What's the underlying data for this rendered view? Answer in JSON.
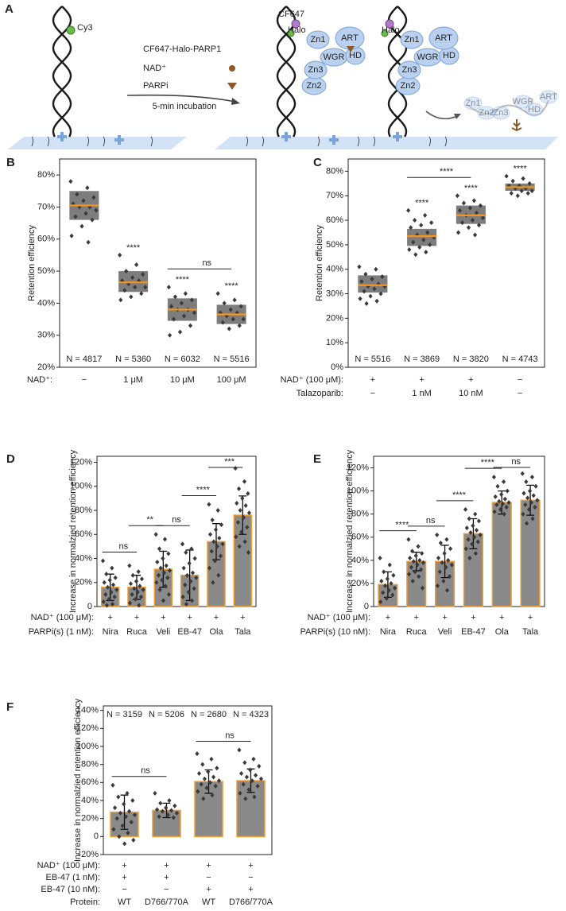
{
  "panel_a": {
    "label": "A",
    "dye1": "Cy3",
    "legend": [
      "CF647-Halo-PARP1",
      "NAD⁺",
      "PARPi"
    ],
    "step": "5-min incubation",
    "dye2": "CF647",
    "tag": "Halo",
    "domains": [
      "Zn1",
      "Zn2",
      "Zn3",
      "WGR",
      "HD",
      "ART"
    ]
  },
  "chart_data": [
    {
      "type": "box",
      "label": "B",
      "y_label": "Retention efficiency",
      "ylim": [
        20,
        85
      ],
      "yticks": [
        {
          "value": 20,
          "label": "20%"
        },
        {
          "value": 30,
          "label": "30%"
        },
        {
          "value": 40,
          "label": "40%"
        },
        {
          "value": 50,
          "label": "50%"
        },
        {
          "value": 60,
          "label": "60%"
        },
        {
          "value": 70,
          "label": "70%"
        },
        {
          "value": 80,
          "label": "80%"
        }
      ],
      "condition_rows": [
        {
          "label": "NAD⁺:",
          "values": [
            "−",
            "1 μM",
            "10 μM",
            "100 μM"
          ]
        }
      ],
      "n_labels": [
        "N = 4817",
        "N = 5360",
        "N = 6032",
        "N = 5516"
      ],
      "n_labels_position": "bottom",
      "box_color": "#7d7d7d",
      "median_color": "#f7941d",
      "point_color": "#3a3a3a",
      "boxes": [
        {
          "q1": 66,
          "median": 70.5,
          "q3": 75
        },
        {
          "q1": 43.5,
          "median": 46.5,
          "q3": 50
        },
        {
          "q1": 34.5,
          "median": 38,
          "q3": 41.5
        },
        {
          "q1": 33.5,
          "median": 36.5,
          "q3": 39.5
        }
      ],
      "points": [
        [
          78,
          76,
          74,
          73,
          72,
          71,
          70,
          70,
          69,
          68,
          67,
          66,
          64,
          61,
          59
        ],
        [
          55,
          52,
          50,
          49,
          48,
          47,
          47,
          46,
          45,
          45,
          44,
          43,
          42,
          41
        ],
        [
          45,
          43,
          42,
          41,
          40,
          39,
          38,
          38,
          37,
          36,
          35,
          33,
          31,
          30
        ],
        [
          43,
          41,
          40,
          39,
          38,
          37,
          37,
          36,
          35,
          35,
          34,
          33,
          32
        ]
      ],
      "sig_labels": [
        null,
        "****",
        "****",
        "****"
      ],
      "pair_labels": [
        null,
        null,
        "ns"
      ]
    },
    {
      "type": "box",
      "label": "C",
      "y_label": "Retention efficiency",
      "ylim": [
        0,
        85
      ],
      "yticks": [
        {
          "value": 0,
          "label": "0%"
        },
        {
          "value": 10,
          "label": "10%"
        },
        {
          "value": 20,
          "label": "20%"
        },
        {
          "value": 30,
          "label": "30%"
        },
        {
          "value": 40,
          "label": "40%"
        },
        {
          "value": 50,
          "label": "50%"
        },
        {
          "value": 60,
          "label": "60%"
        },
        {
          "value": 70,
          "label": "70%"
        },
        {
          "value": 80,
          "label": "80%"
        }
      ],
      "condition_rows": [
        {
          "label": "NAD⁺ (100 μM):",
          "values": [
            "+",
            "+",
            "+",
            "−"
          ]
        },
        {
          "label": "Talazoparib:",
          "values": [
            "−",
            "1 nM",
            "10 nM",
            "−"
          ]
        }
      ],
      "n_labels": [
        "N = 5516",
        "N = 3869",
        "N = 3820",
        "N = 4743"
      ],
      "n_labels_position": "bottom",
      "box_color": "#7d7d7d",
      "median_color": "#f7941d",
      "point_color": "#3a3a3a",
      "boxes": [
        {
          "q1": 30.5,
          "median": 33.5,
          "q3": 37.5
        },
        {
          "q1": 49.5,
          "median": 53.5,
          "q3": 56.5
        },
        {
          "q1": 58.5,
          "median": 62,
          "q3": 66
        },
        {
          "q1": 72,
          "median": 73.5,
          "q3": 75
        }
      ],
      "points": [
        [
          41,
          40,
          38,
          37,
          36,
          35,
          34,
          33,
          33,
          32,
          31,
          30,
          29,
          28,
          27,
          26
        ],
        [
          64,
          62,
          60,
          59,
          58,
          57,
          55,
          54,
          53,
          52,
          51,
          50,
          49,
          48,
          47,
          46
        ],
        [
          70,
          68,
          67,
          66,
          65,
          64,
          63,
          62,
          61,
          60,
          59,
          58,
          57,
          55,
          54
        ],
        [
          78,
          77,
          76,
          75,
          74,
          74,
          73,
          73,
          72,
          72,
          71,
          71,
          70
        ]
      ],
      "sig_labels": [
        null,
        "****",
        "****",
        "****"
      ],
      "pair_labels": [
        null,
        "****",
        null
      ]
    },
    {
      "type": "bar",
      "label": "D",
      "y_label": "Increase in normalzied retention efficiency",
      "ylim": [
        0,
        125
      ],
      "yticks": [
        0,
        {
          "value": 20,
          "label": "20%"
        },
        {
          "value": 40,
          "label": "40%"
        },
        {
          "value": 60,
          "label": "60%"
        },
        {
          "value": 80,
          "label": "80%"
        },
        {
          "value": 100,
          "label": "100%"
        },
        {
          "value": 120,
          "label": "120%"
        }
      ],
      "condition_rows": [
        {
          "label": "NAD⁺ (100 μM):",
          "values": [
            "+",
            "+",
            "+",
            "+",
            "+",
            "+"
          ]
        },
        {
          "label": "PARPi(s) (1 nM):",
          "values": [
            "Nira",
            "Ruca",
            "Veli",
            "EB-47",
            "Ola",
            "Tala"
          ]
        }
      ],
      "bar_color": "#8a8a8a",
      "edge_color": "#f39a2a",
      "point_color": "#3a3a3a",
      "values": [
        16,
        16,
        31,
        26,
        54,
        76
      ],
      "errors": [
        11,
        10,
        15,
        21,
        15,
        16
      ],
      "points": [
        [
          38,
          32,
          27,
          24,
          22,
          20,
          18,
          16,
          14,
          12,
          10,
          8,
          6,
          4,
          2,
          1
        ],
        [
          34,
          29,
          26,
          23,
          21,
          19,
          17,
          15,
          14,
          12,
          10,
          8,
          6,
          3,
          1
        ],
        [
          60,
          56,
          48,
          44,
          40,
          37,
          34,
          32,
          30,
          28,
          26,
          24,
          22,
          20,
          17,
          14,
          10,
          5
        ],
        [
          52,
          48,
          45,
          40,
          36,
          32,
          28,
          26,
          24,
          21,
          18,
          15,
          12,
          8,
          5,
          2
        ],
        [
          85,
          80,
          72,
          68,
          64,
          60,
          57,
          54,
          52,
          50,
          46,
          42,
          38,
          32,
          26,
          20
        ],
        [
          115,
          104,
          98,
          94,
          90,
          86,
          84,
          80,
          78,
          74,
          70,
          66,
          62,
          58,
          54,
          50,
          45
        ]
      ],
      "pair_labels": [
        "ns",
        "**",
        "ns",
        "****",
        "***"
      ]
    },
    {
      "type": "bar",
      "label": "E",
      "y_label": "Increase in normalzied retention efficiency",
      "ylim": [
        0,
        130
      ],
      "yticks": [
        0,
        {
          "value": 20,
          "label": "20%"
        },
        {
          "value": 40,
          "label": "40%"
        },
        {
          "value": 60,
          "label": "60%"
        },
        {
          "value": 80,
          "label": "80%"
        },
        {
          "value": 100,
          "label": "100%"
        },
        {
          "value": 120,
          "label": "120%"
        }
      ],
      "condition_rows": [
        {
          "label": "NAD⁺ (100 μM):",
          "values": [
            "+",
            "+",
            "+",
            "+",
            "+",
            "+"
          ]
        },
        {
          "label": "PARPi(s) (10 nM):",
          "values": [
            "Nira",
            "Ruca",
            "Veli",
            "EB-47",
            "Ola",
            "Tala"
          ]
        }
      ],
      "bar_color": "#8a8a8a",
      "edge_color": "#f39a2a",
      "point_color": "#3a3a3a",
      "values": [
        19,
        39,
        39,
        63,
        90,
        92
      ],
      "errors": [
        11,
        8,
        14,
        13,
        10,
        13
      ],
      "points": [
        [
          42,
          36,
          30,
          27,
          24,
          22,
          20,
          18,
          16,
          14,
          12,
          10,
          7,
          4
        ],
        [
          58,
          52,
          48,
          46,
          44,
          42,
          40,
          39,
          38,
          36,
          34,
          32,
          30,
          28,
          26,
          22,
          16
        ],
        [
          62,
          58,
          55,
          50,
          46,
          42,
          40,
          38,
          36,
          34,
          30,
          26,
          22,
          18,
          14
        ],
        [
          84,
          80,
          76,
          74,
          70,
          68,
          66,
          64,
          62,
          60,
          58,
          56,
          54,
          50,
          46,
          42
        ],
        [
          112,
          108,
          104,
          100,
          97,
          95,
          93,
          91,
          90,
          89,
          88,
          86,
          84,
          82,
          80
        ],
        [
          115,
          112,
          108,
          104,
          100,
          98,
          96,
          94,
          92,
          90,
          88,
          86,
          84,
          80,
          76,
          72
        ]
      ],
      "pair_labels": [
        "****",
        "ns",
        "****",
        "****",
        "ns"
      ]
    },
    {
      "type": "bar",
      "label": "F",
      "y_label": "Increase in normalzied retention efficiency",
      "ylim": [
        -20,
        145
      ],
      "yticks": [
        {
          "value": -20,
          "label": "-20%"
        },
        0,
        {
          "value": 20,
          "label": "20%"
        },
        {
          "value": 40,
          "label": "40%"
        },
        {
          "value": 60,
          "label": "60%"
        },
        {
          "value": 80,
          "label": "80%"
        },
        {
          "value": 100,
          "label": "100%"
        },
        {
          "value": 120,
          "label": "120%"
        },
        {
          "value": 140,
          "label": "140%"
        }
      ],
      "condition_rows": [
        {
          "label": "NAD⁺ (100 μM):",
          "values": [
            "+",
            "+",
            "+",
            "+"
          ]
        },
        {
          "label": "EB-47 (1 nM):",
          "values": [
            "+",
            "+",
            "−",
            "−"
          ]
        },
        {
          "label": "EB-47 (10 nM):",
          "values": [
            "−",
            "−",
            "+",
            "+"
          ]
        },
        {
          "label": "Protein:",
          "values": [
            "WT",
            "D766/770A",
            "WT",
            "D766/770A"
          ]
        }
      ],
      "n_labels": [
        "N = 3159",
        "N = 5206",
        "N = 2680",
        "N = 4323"
      ],
      "n_labels_position": "top",
      "bar_color": "#8a8a8a",
      "edge_color": "#f39a2a",
      "point_color": "#3a3a3a",
      "values": [
        27,
        29,
        61,
        62
      ],
      "errors": [
        19,
        8,
        13,
        13
      ],
      "points": [
        [
          57,
          48,
          44,
          40,
          36,
          32,
          28,
          26,
          24,
          22,
          20,
          16,
          12,
          8,
          4,
          0,
          -4,
          -8
        ],
        [
          48,
          40,
          37,
          34,
          32,
          30,
          29,
          28,
          26,
          24,
          22,
          21
        ],
        [
          92,
          86,
          80,
          76,
          72,
          70,
          66,
          64,
          62,
          60,
          58,
          56,
          54,
          50,
          46,
          42
        ],
        [
          96,
          86,
          82,
          78,
          74,
          70,
          68,
          66,
          64,
          62,
          58,
          56,
          52,
          48,
          44,
          42
        ]
      ],
      "pair_labels": [
        "ns",
        null,
        "ns"
      ]
    }
  ]
}
